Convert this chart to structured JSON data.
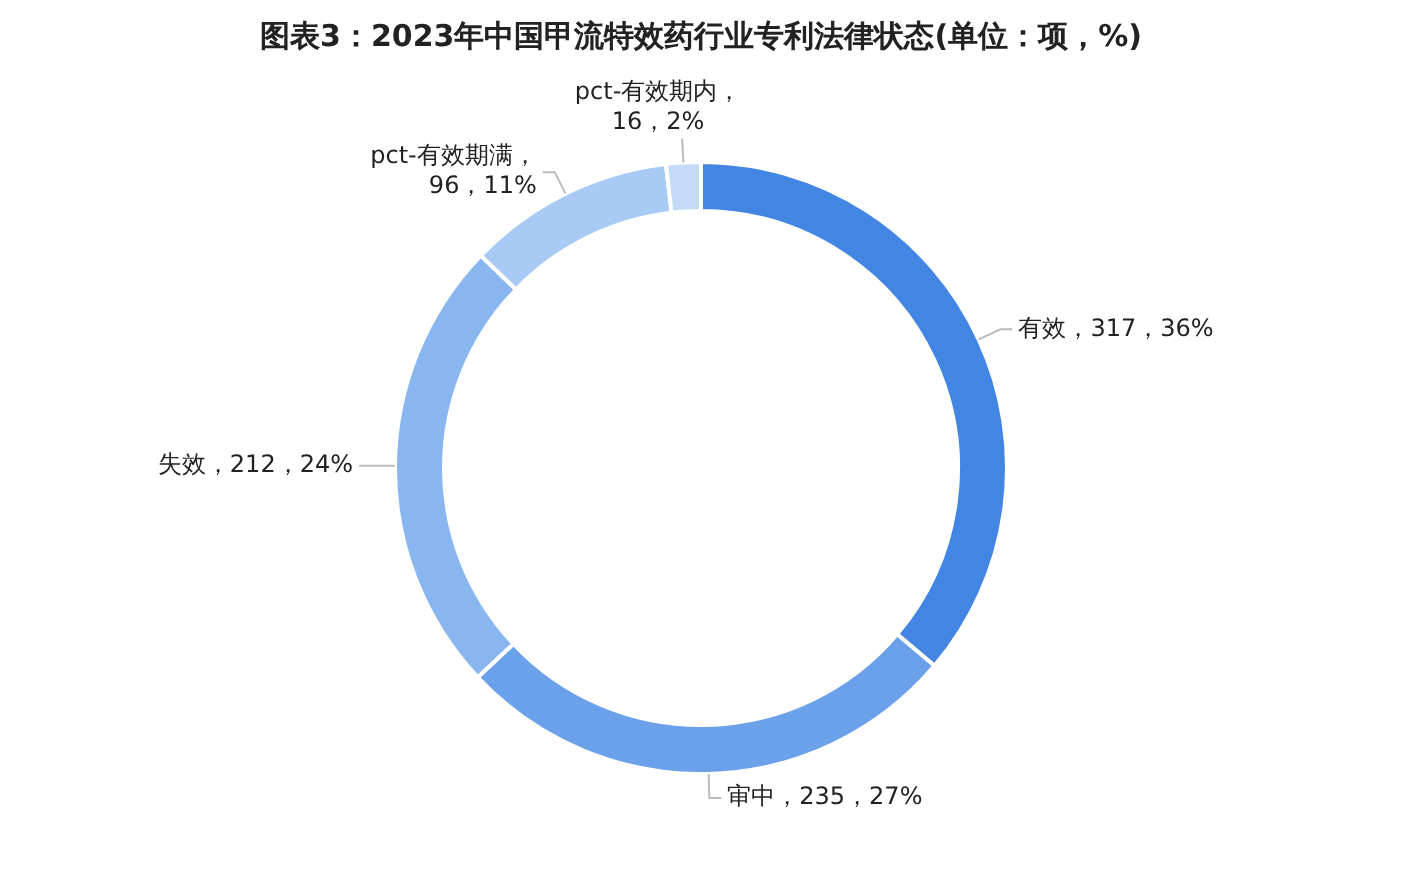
{
  "chart_data": {
    "type": "donut",
    "title": "图表3：2023年中国甲流特效药行业专利法律状态(单位：项，%)",
    "categories": [
      "有效",
      "审中",
      "失效",
      "pct-有效期满",
      "pct-有效期内"
    ],
    "values": [
      317,
      235,
      212,
      96,
      16
    ],
    "colors": [
      "#4285e2",
      "#6aa1ea",
      "#8ab6f0",
      "#a8caf5",
      "#c3daf8"
    ],
    "value_labels": [
      "，317，36%",
      "，235，27%",
      "，212，24%",
      "，\n96，11%",
      "，\n16，2%"
    ],
    "legend": false
  }
}
